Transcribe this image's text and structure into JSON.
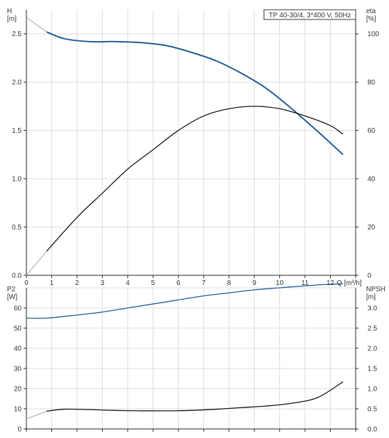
{
  "chart_data": [
    {
      "type": "line",
      "title": "TP 40-30/4, 3*400 V, 50Hz",
      "xlabel": "Q [m³/h]",
      "xlim": [
        0,
        13
      ],
      "xticks": [
        0,
        1,
        2,
        3,
        4,
        5,
        6,
        7,
        8,
        9,
        10,
        11,
        12
      ],
      "grid": true,
      "left_axis": {
        "label_line1": "H",
        "label_line2": "[m]",
        "ylim": [
          0,
          2.75
        ],
        "ticks": [
          0.0,
          0.5,
          1.0,
          1.5,
          2.0,
          2.5
        ],
        "tick_labels": [
          "0.0",
          "0.5",
          "1.0",
          "1.5",
          "2.0",
          "2.5"
        ]
      },
      "right_axis": {
        "label_line1": "eta",
        "label_line2": "[%]",
        "ylim": [
          0,
          110
        ],
        "ticks": [
          0,
          20,
          40,
          60,
          80,
          100
        ],
        "tick_labels": [
          "0",
          "20",
          "40",
          "60",
          "80",
          "100"
        ]
      },
      "series": [
        {
          "axis": "left",
          "color": "#1f5a96",
          "x": [
            0.8,
            1.5,
            2.5,
            3.5,
            4.5,
            5.5,
            6.5,
            7.5,
            8.5,
            9.5,
            10.5,
            11.5,
            12.5
          ],
          "y": [
            2.52,
            2.45,
            2.42,
            2.42,
            2.41,
            2.38,
            2.31,
            2.22,
            2.09,
            1.93,
            1.72,
            1.49,
            1.25
          ],
          "extrapolated": {
            "x": [
              0,
              0.8
            ],
            "y": [
              2.67,
              2.52
            ]
          }
        },
        {
          "axis": "right",
          "color": "#111111",
          "x": [
            0.8,
            2,
            3,
            4,
            5,
            6,
            7,
            8,
            9,
            10,
            11,
            12,
            12.5
          ],
          "y": [
            10,
            24,
            34,
            44,
            52,
            60,
            66,
            69,
            70,
            69,
            66,
            62,
            58.5
          ],
          "extrapolated": {
            "x": [
              0,
              0.8
            ],
            "y": [
              0,
              10
            ]
          }
        }
      ]
    },
    {
      "type": "line",
      "xlim": [
        0,
        13
      ],
      "grid": true,
      "left_axis": {
        "label_line1": "P2",
        "label_line2": "[W]",
        "ylim": [
          0,
          70
        ],
        "ticks": [
          0,
          10,
          20,
          30,
          40,
          50,
          60
        ],
        "tick_labels": [
          "0",
          "10",
          "20",
          "30",
          "40",
          "50",
          "60"
        ]
      },
      "right_axis": {
        "label_line1": "NPSH",
        "label_line2": "[m]",
        "ylim": [
          0,
          3.5
        ],
        "ticks": [
          0,
          0.5,
          1.0,
          1.5,
          2.0,
          2.5,
          3.0
        ],
        "tick_labels": [
          "0.0",
          "0.5",
          "1.0",
          "1.5",
          "2.0",
          "2.5",
          "3.0"
        ]
      },
      "series": [
        {
          "axis": "left",
          "color": "#1f5a96",
          "x": [
            0,
            0.8,
            2,
            3,
            4,
            5,
            6,
            7,
            8,
            9,
            10,
            11,
            12,
            12.5
          ],
          "y": [
            55,
            55,
            56.5,
            58,
            60,
            62,
            64,
            66,
            67.5,
            69,
            70,
            71,
            71.8,
            72
          ]
        },
        {
          "axis": "right",
          "color": "#111111",
          "x": [
            0.8,
            1.5,
            2.5,
            3.5,
            4.5,
            5.5,
            6.5,
            7.5,
            8.5,
            9.5,
            10.5,
            11.5,
            12.5
          ],
          "y": [
            0.44,
            0.49,
            0.48,
            0.46,
            0.45,
            0.45,
            0.46,
            0.49,
            0.53,
            0.57,
            0.64,
            0.78,
            1.17
          ],
          "extrapolated": {
            "x": [
              0,
              0.8
            ],
            "y": [
              0.25,
              0.44
            ]
          }
        }
      ]
    }
  ]
}
